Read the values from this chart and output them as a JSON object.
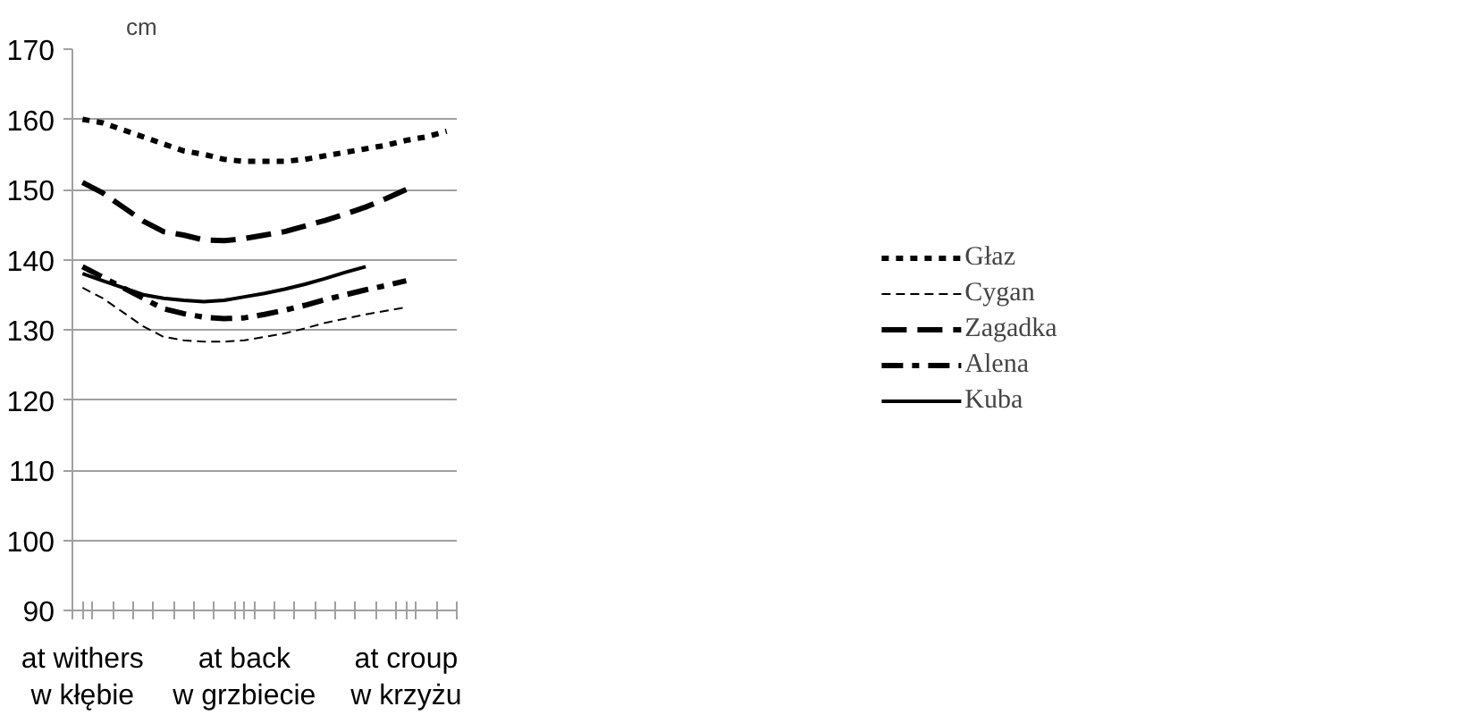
{
  "chart_data": {
    "type": "line",
    "ylabel": "cm",
    "categories": [
      "at withers\nw kłębie",
      null,
      null,
      null,
      null,
      null,
      null,
      null,
      "at back\nw grzbiecie",
      null,
      null,
      null,
      null,
      null,
      null,
      null,
      "at croup\nw krzyżu",
      null,
      null
    ],
    "series": [
      {
        "name": "Głaz",
        "color": "#000000",
        "line_style": "dotted",
        "values": [
          160,
          159.5,
          158.5,
          157.5,
          156.5,
          155.5,
          155,
          154.3,
          154,
          154,
          154,
          154.3,
          154.8,
          155.3,
          155.8,
          156.3,
          157,
          157.5,
          158.3
        ]
      },
      {
        "name": "Cygan",
        "color": "#000000",
        "line_style": "dashed",
        "values": [
          136,
          134.5,
          132.5,
          130.5,
          129,
          128.5,
          128.3,
          128.3,
          128.5,
          129,
          129.5,
          130.2,
          131,
          131.6,
          132.2,
          132.7,
          133.2,
          null,
          null
        ]
      },
      {
        "name": "Zagadka",
        "color": "#000000",
        "line_style": "longdash",
        "values": [
          151,
          149.5,
          147.5,
          145.5,
          144,
          143.5,
          142.8,
          142.7,
          143,
          143.5,
          144,
          144.8,
          145.6,
          146.5,
          147.5,
          148.7,
          150,
          null,
          null
        ]
      },
      {
        "name": "Alena",
        "color": "#000000",
        "line_style": "dashdot",
        "values": [
          139,
          137.5,
          136,
          134.5,
          133,
          132.3,
          131.8,
          131.6,
          131.7,
          132.2,
          132.8,
          133.5,
          134.3,
          135,
          135.7,
          136.3,
          137,
          null,
          null
        ]
      },
      {
        "name": "Kuba",
        "color": "#000000",
        "line_style": "solid",
        "values": [
          138,
          137,
          136,
          135,
          134.5,
          134.2,
          134,
          134.2,
          134.7,
          135.2,
          135.8,
          136.5,
          137.3,
          138.2,
          139,
          null,
          null,
          null,
          null
        ]
      }
    ],
    "ylim": [
      90,
      170
    ],
    "yticks": [
      90,
      100,
      110,
      120,
      130,
      140,
      150,
      160,
      170
    ],
    "grid": "y",
    "legend": "right",
    "marker": "none"
  }
}
